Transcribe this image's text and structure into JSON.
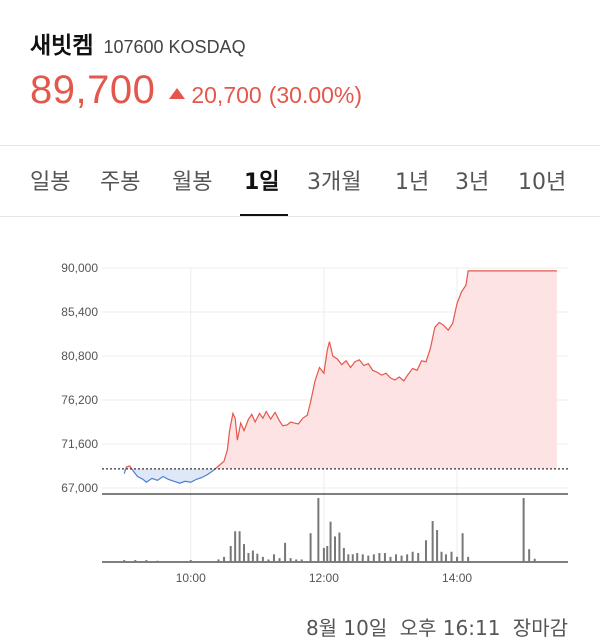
{
  "stock": {
    "name": "새빗켐",
    "code_market": "107600 KOSDAQ",
    "price": "89,700",
    "change": "20,700",
    "change_pct": "(30.00%)",
    "direction": "up",
    "up_color": "#e4574c",
    "down_color": "#4a7fd4"
  },
  "tabs": [
    {
      "label": "일봉",
      "active": false
    },
    {
      "label": "주봉",
      "active": false
    },
    {
      "label": "월봉",
      "active": false
    },
    {
      "label": "1일",
      "active": true
    },
    {
      "label": "3개월",
      "active": false
    },
    {
      "label": "1년",
      "active": false
    },
    {
      "label": "3년",
      "active": false
    },
    {
      "label": "10년",
      "active": false
    }
  ],
  "chart_data": {
    "type": "area",
    "y_tick_labels": [
      "90,000",
      "85,400",
      "80,800",
      "76,200",
      "71,600",
      "67,000"
    ],
    "y_ticks": [
      90000,
      85400,
      80800,
      76200,
      71600,
      67000
    ],
    "ylim": [
      67000,
      90000
    ],
    "x_tick_labels": [
      "10:00",
      "12:00",
      "14:00"
    ],
    "x_tick_values": [
      "10:00",
      "12:00",
      "14:00"
    ],
    "x_range": [
      "08:40",
      "15:40"
    ],
    "previous_close": 69000,
    "grid": true,
    "price_series": [
      [
        "09:00",
        68500
      ],
      [
        "09:02",
        69200
      ],
      [
        "09:05",
        69300
      ],
      [
        "09:08",
        68800
      ],
      [
        "09:12",
        68200
      ],
      [
        "09:17",
        67900
      ],
      [
        "09:20",
        67600
      ],
      [
        "09:25",
        68000
      ],
      [
        "09:30",
        67800
      ],
      [
        "09:35",
        68200
      ],
      [
        "09:40",
        67900
      ],
      [
        "09:45",
        67700
      ],
      [
        "09:50",
        67500
      ],
      [
        "09:55",
        67700
      ],
      [
        "10:00",
        67600
      ],
      [
        "10:05",
        67900
      ],
      [
        "10:10",
        68100
      ],
      [
        "10:15",
        68400
      ],
      [
        "10:20",
        68800
      ],
      [
        "10:25",
        69300
      ],
      [
        "10:30",
        69800
      ],
      [
        "10:33",
        71000
      ],
      [
        "10:35",
        73000
      ],
      [
        "10:38",
        74800
      ],
      [
        "10:40",
        74300
      ],
      [
        "10:42",
        72000
      ],
      [
        "10:45",
        73800
      ],
      [
        "10:48",
        73000
      ],
      [
        "10:52",
        74200
      ],
      [
        "10:55",
        74700
      ],
      [
        "10:58",
        73900
      ],
      [
        "11:02",
        74800
      ],
      [
        "11:05",
        74300
      ],
      [
        "11:08",
        75000
      ],
      [
        "11:12",
        74200
      ],
      [
        "11:16",
        74900
      ],
      [
        "11:20",
        74000
      ],
      [
        "11:23",
        73500
      ],
      [
        "11:27",
        73600
      ],
      [
        "11:30",
        73900
      ],
      [
        "11:33",
        73800
      ],
      [
        "11:37",
        73700
      ],
      [
        "11:41",
        74300
      ],
      [
        "11:45",
        74600
      ],
      [
        "11:48",
        76000
      ],
      [
        "11:52",
        78200
      ],
      [
        "11:56",
        79600
      ],
      [
        "12:00",
        79000
      ],
      [
        "12:03",
        81400
      ],
      [
        "12:05",
        82300
      ],
      [
        "12:08",
        80800
      ],
      [
        "12:12",
        80500
      ],
      [
        "12:16",
        79900
      ],
      [
        "12:20",
        80300
      ],
      [
        "12:24",
        79600
      ],
      [
        "12:28",
        80200
      ],
      [
        "12:32",
        80400
      ],
      [
        "12:36",
        79800
      ],
      [
        "12:40",
        80000
      ],
      [
        "12:44",
        79300
      ],
      [
        "12:48",
        79100
      ],
      [
        "12:52",
        78800
      ],
      [
        "12:56",
        79000
      ],
      [
        "13:00",
        78500
      ],
      [
        "13:04",
        78300
      ],
      [
        "13:08",
        78600
      ],
      [
        "13:12",
        78200
      ],
      [
        "13:16",
        78900
      ],
      [
        "13:20",
        79500
      ],
      [
        "13:24",
        79300
      ],
      [
        "13:28",
        80300
      ],
      [
        "13:32",
        80200
      ],
      [
        "13:36",
        81600
      ],
      [
        "13:40",
        83800
      ],
      [
        "13:44",
        84300
      ],
      [
        "13:48",
        84000
      ],
      [
        "13:52",
        83500
      ],
      [
        "13:56",
        84200
      ],
      [
        "14:00",
        86300
      ],
      [
        "14:04",
        87500
      ],
      [
        "14:08",
        88200
      ],
      [
        "14:10",
        89700
      ],
      [
        "15:30",
        89700
      ]
    ],
    "volume_series": [
      [
        "09:00",
        3
      ],
      [
        "09:10",
        3
      ],
      [
        "09:20",
        3
      ],
      [
        "09:30",
        2
      ],
      [
        "10:00",
        3
      ],
      [
        "10:25",
        4
      ],
      [
        "10:30",
        8
      ],
      [
        "10:36",
        25
      ],
      [
        "10:40",
        48
      ],
      [
        "10:44",
        48
      ],
      [
        "10:48",
        28
      ],
      [
        "10:52",
        14
      ],
      [
        "10:56",
        18
      ],
      [
        "11:00",
        13
      ],
      [
        "11:05",
        8
      ],
      [
        "11:10",
        4
      ],
      [
        "11:15",
        12
      ],
      [
        "11:20",
        6
      ],
      [
        "11:25",
        30
      ],
      [
        "11:30",
        6
      ],
      [
        "11:35",
        4
      ],
      [
        "11:40",
        4
      ],
      [
        "11:48",
        45
      ],
      [
        "11:55",
        100
      ],
      [
        "12:00",
        22
      ],
      [
        "12:03",
        25
      ],
      [
        "12:06",
        63
      ],
      [
        "12:10",
        40
      ],
      [
        "12:14",
        46
      ],
      [
        "12:18",
        22
      ],
      [
        "12:22",
        12
      ],
      [
        "12:26",
        12
      ],
      [
        "12:30",
        14
      ],
      [
        "12:35",
        12
      ],
      [
        "12:40",
        10
      ],
      [
        "12:45",
        12
      ],
      [
        "12:50",
        14
      ],
      [
        "12:55",
        14
      ],
      [
        "13:00",
        8
      ],
      [
        "13:05",
        12
      ],
      [
        "13:10",
        10
      ],
      [
        "13:15",
        12
      ],
      [
        "13:20",
        16
      ],
      [
        "13:25",
        14
      ],
      [
        "13:32",
        34
      ],
      [
        "13:38",
        64
      ],
      [
        "13:42",
        50
      ],
      [
        "13:46",
        16
      ],
      [
        "13:50",
        12
      ],
      [
        "13:55",
        16
      ],
      [
        "14:00",
        8
      ],
      [
        "14:05",
        45
      ],
      [
        "14:10",
        8
      ],
      [
        "15:00",
        100
      ],
      [
        "15:05",
        20
      ],
      [
        "15:10",
        5
      ]
    ]
  },
  "footer": {
    "date": "8월 10일",
    "time": "오후 16:11",
    "status": "장마감"
  }
}
